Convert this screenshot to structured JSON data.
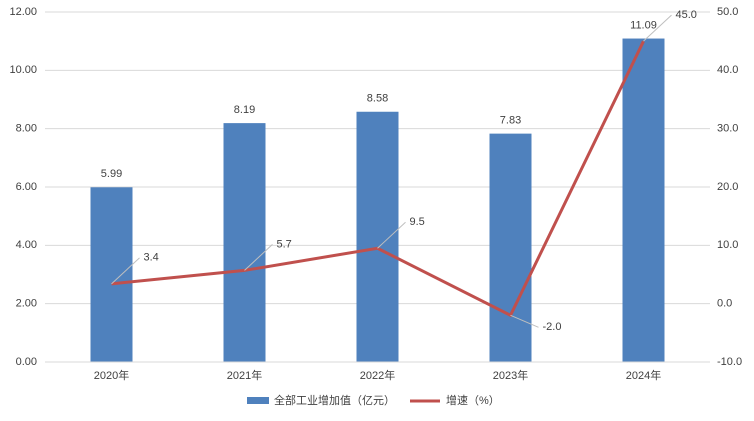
{
  "chart_data": {
    "type": "bar",
    "categories": [
      "2020年",
      "2021年",
      "2022年",
      "2023年",
      "2024年"
    ],
    "series": [
      {
        "name": "全部工业增加值（亿元）",
        "type": "bar",
        "color": "#4f81bd",
        "values": [
          5.99,
          8.19,
          8.58,
          7.83,
          11.09
        ]
      },
      {
        "name": "增速（%）",
        "type": "line",
        "axis": "y2",
        "color": "#c0504d",
        "values": [
          3.4,
          5.7,
          9.5,
          -2.0,
          45.0
        ],
        "value_labels": [
          "3.4",
          "5.7",
          "9.5",
          "-2.0",
          "45.0"
        ]
      }
    ],
    "ylim": [
      0,
      12
    ],
    "yticks": [
      {
        "value": 0,
        "label": "0.00"
      },
      {
        "value": 2,
        "label": "2.00"
      },
      {
        "value": 4,
        "label": "4.00"
      },
      {
        "value": 6,
        "label": "6.00"
      },
      {
        "value": 8,
        "label": "8.00"
      },
      {
        "value": 10,
        "label": "10.00"
      },
      {
        "value": 12,
        "label": "12.00"
      }
    ],
    "y2lim": [
      -10,
      50
    ],
    "y2ticks": [
      {
        "value": -10,
        "label": "-10.0"
      },
      {
        "value": 0,
        "label": "0.0"
      },
      {
        "value": 10,
        "label": "10.0"
      },
      {
        "value": 20,
        "label": "20.0"
      },
      {
        "value": 30,
        "label": "30.0"
      },
      {
        "value": 40,
        "label": "40.0"
      },
      {
        "value": 50,
        "label": "50.0"
      }
    ],
    "grid": true,
    "legend": "bottom"
  }
}
